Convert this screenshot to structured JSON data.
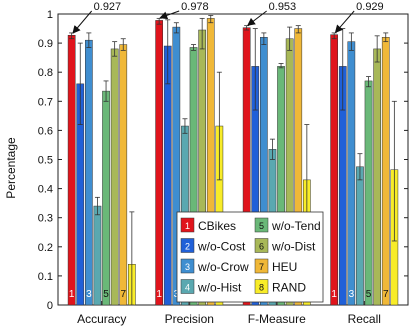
{
  "chart_data": {
    "type": "bar",
    "title": "",
    "xlabel": "",
    "ylabel": "Percentage",
    "ylim": [
      0,
      1
    ],
    "yticks": [
      "0",
      "0.1",
      "0.2",
      "0.3",
      "0.4",
      "0.5",
      "0.6",
      "0.7",
      "0.8",
      "0.9",
      "1"
    ],
    "categories": [
      "Accuracy",
      "Precision",
      "F-Measure",
      "Recall"
    ],
    "grid": false,
    "legend_position": "bottom-center",
    "series": [
      {
        "name": "CBikes",
        "number": "1",
        "color": "#e0141c",
        "values": [
          0.927,
          0.978,
          0.953,
          0.929
        ],
        "err_low": [
          0.915,
          0.965,
          0.945,
          0.915
        ],
        "err_high": [
          0.935,
          0.985,
          0.96,
          0.935
        ]
      },
      {
        "name": "w/o-Cost",
        "number": "2",
        "color": "#2060d8",
        "values": [
          0.76,
          0.89,
          0.82,
          0.82
        ],
        "err_low": [
          0.62,
          0.76,
          0.67,
          0.67
        ],
        "err_high": [
          0.9,
          0.98,
          0.95,
          0.95
        ]
      },
      {
        "name": "w/o-Crow",
        "number": "3",
        "color": "#3f8ed0",
        "values": [
          0.91,
          0.955,
          0.92,
          0.905
        ],
        "err_low": [
          0.885,
          0.935,
          0.895,
          0.875
        ],
        "err_high": [
          0.935,
          0.97,
          0.935,
          0.935
        ]
      },
      {
        "name": "w/o-Hist",
        "number": "4",
        "color": "#5aa8b0",
        "values": [
          0.34,
          0.615,
          0.535,
          0.475
        ],
        "err_low": [
          0.31,
          0.59,
          0.5,
          0.43
        ],
        "err_high": [
          0.37,
          0.64,
          0.57,
          0.52
        ]
      },
      {
        "name": "w/o-Tend",
        "number": "5",
        "color": "#6ab878",
        "values": [
          0.735,
          0.885,
          0.82,
          0.77
        ],
        "err_low": [
          0.7,
          0.875,
          0.815,
          0.75
        ],
        "err_high": [
          0.77,
          0.895,
          0.83,
          0.785
        ]
      },
      {
        "name": "w/o-Dist",
        "number": "6",
        "color": "#a8b858",
        "values": [
          0.88,
          0.945,
          0.915,
          0.88
        ],
        "err_low": [
          0.855,
          0.88,
          0.875,
          0.835
        ],
        "err_high": [
          0.905,
          0.985,
          0.955,
          0.925
        ]
      },
      {
        "name": "HEU",
        "number": "7",
        "color": "#f0b838",
        "values": [
          0.895,
          0.985,
          0.95,
          0.92
        ],
        "err_low": [
          0.875,
          0.97,
          0.935,
          0.905
        ],
        "err_high": [
          0.915,
          0.995,
          0.96,
          0.935
        ]
      },
      {
        "name": "RAND",
        "number": "8",
        "color": "#f8ec28",
        "values": [
          0.14,
          0.615,
          0.43,
          0.465
        ],
        "err_low": [
          0.0,
          0.43,
          0.24,
          0.22
        ],
        "err_high": [
          0.32,
          0.8,
          0.62,
          0.7
        ]
      }
    ],
    "bar_number_labels": [
      {
        "series": 0,
        "text": "1"
      },
      {
        "series": 2,
        "text": "3"
      },
      {
        "series": 4,
        "text": "5"
      },
      {
        "series": 6,
        "text": "7"
      }
    ],
    "annotations": [
      {
        "category": 0,
        "text": "0.927"
      },
      {
        "category": 1,
        "text": "0.978"
      },
      {
        "category": 2,
        "text": "0.953"
      },
      {
        "category": 3,
        "text": "0.929"
      }
    ]
  }
}
